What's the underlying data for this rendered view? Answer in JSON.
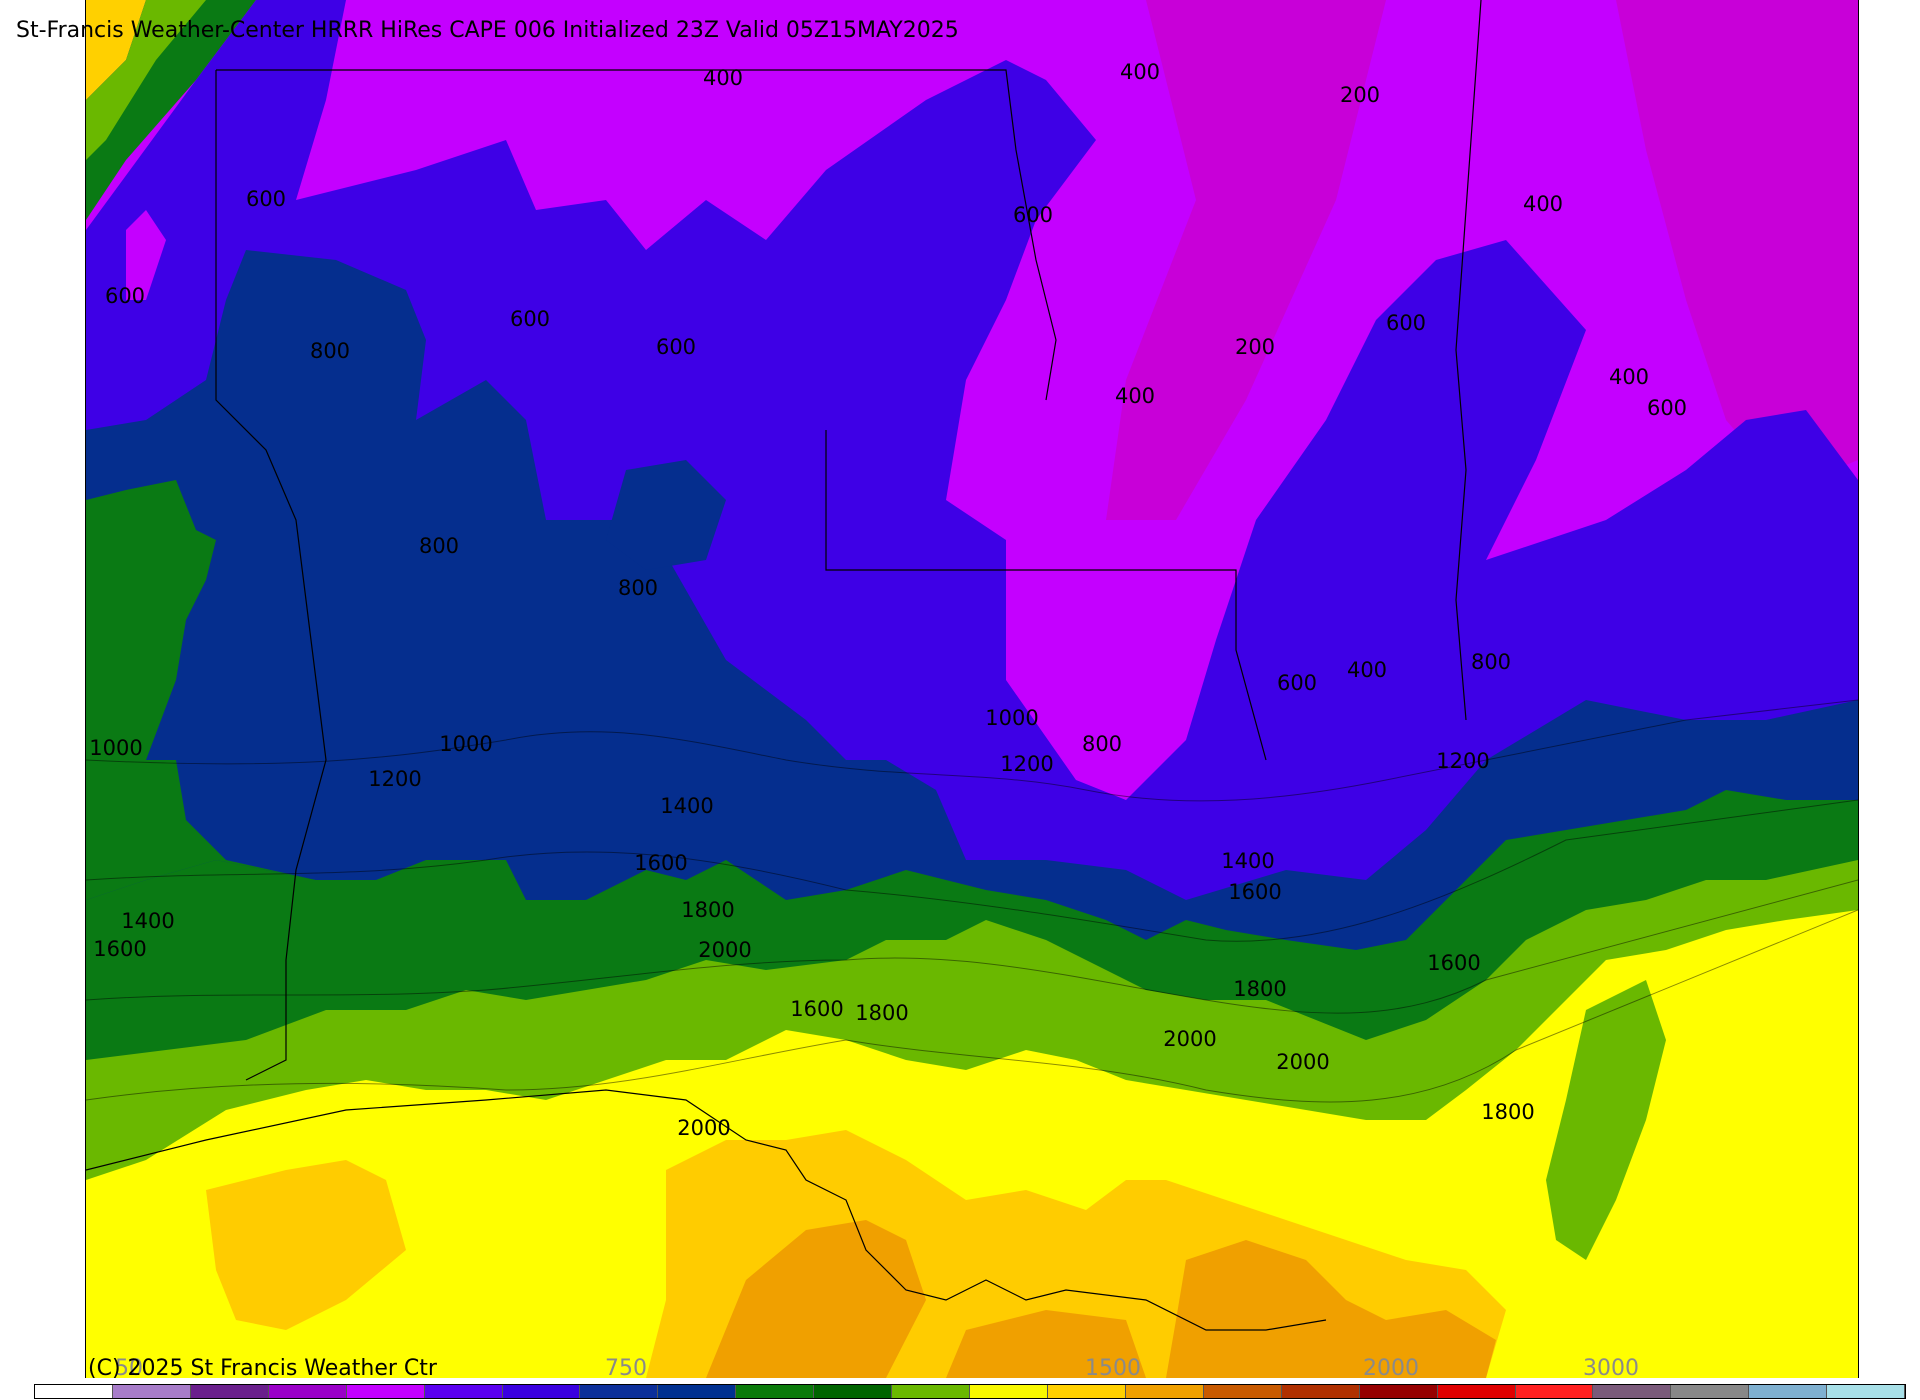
{
  "title": "St-Francis Weather-Center HRRR HiRes CAPE  006 Initialized  23Z Valid 05Z15MAY2025",
  "copyright": "(C) 2025 St Francis Weather Ctr",
  "contour_labels": [
    {
      "id": "l01",
      "text": "400"
    },
    {
      "id": "l02",
      "text": "400"
    },
    {
      "id": "l03",
      "text": "200"
    },
    {
      "id": "l04",
      "text": "600"
    },
    {
      "id": "l05",
      "text": "600"
    },
    {
      "id": "l06",
      "text": "400"
    },
    {
      "id": "l07",
      "text": "600"
    },
    {
      "id": "l08",
      "text": "600"
    },
    {
      "id": "l09",
      "text": "600"
    },
    {
      "id": "l10",
      "text": "800"
    },
    {
      "id": "l11",
      "text": "600"
    },
    {
      "id": "l12",
      "text": "200"
    },
    {
      "id": "l13",
      "text": "400"
    },
    {
      "id": "l14",
      "text": "400"
    },
    {
      "id": "l15",
      "text": "600"
    },
    {
      "id": "l16",
      "text": "800"
    },
    {
      "id": "l17",
      "text": "800"
    },
    {
      "id": "l18",
      "text": "600"
    },
    {
      "id": "l19",
      "text": "400"
    },
    {
      "id": "l20",
      "text": "800"
    },
    {
      "id": "l21",
      "text": "1000"
    },
    {
      "id": "l22",
      "text": "1000"
    },
    {
      "id": "l23",
      "text": "1000"
    },
    {
      "id": "l24",
      "text": "800"
    },
    {
      "id": "l25",
      "text": "1200"
    },
    {
      "id": "l26",
      "text": "1200"
    },
    {
      "id": "l27",
      "text": "1200"
    },
    {
      "id": "l28",
      "text": "1400"
    },
    {
      "id": "l29",
      "text": "1400"
    },
    {
      "id": "l30",
      "text": "1600"
    },
    {
      "id": "l31",
      "text": "1600"
    },
    {
      "id": "l32",
      "text": "1800"
    },
    {
      "id": "l33",
      "text": "2000"
    },
    {
      "id": "l34",
      "text": "1400"
    },
    {
      "id": "l35",
      "text": "1600"
    },
    {
      "id": "l36",
      "text": "1600"
    },
    {
      "id": "l37",
      "text": "1800"
    },
    {
      "id": "l38",
      "text": "1600"
    },
    {
      "id": "l39",
      "text": "1800"
    },
    {
      "id": "l40",
      "text": "2000"
    },
    {
      "id": "l41",
      "text": "2000"
    },
    {
      "id": "l42",
      "text": "2000"
    },
    {
      "id": "l43",
      "text": "1800"
    }
  ],
  "colorbar": {
    "tick_labels": [
      "50",
      "750",
      "1500",
      "2000",
      "3000"
    ],
    "colors": [
      "#ffffff",
      "#a77cc9",
      "#6a1f8c",
      "#9a00c8",
      "#c300ff",
      "#5a00f0",
      "#3a00e0",
      "#0c2f9a",
      "#003090",
      "#0a7a0a",
      "#006400",
      "#6ab800",
      "#f8f800",
      "#ffd000",
      "#f0a000",
      "#c85a00",
      "#b03000",
      "#960000",
      "#e00000",
      "#ff2020",
      "#7a5a7a",
      "#888888",
      "#7fb0d0",
      "#a8e0e8"
    ]
  },
  "map_colors": {
    "cape_0_200": "#c800d8",
    "cape_200_400": "#c400ff",
    "cape_400_600": "#3e00e6",
    "cape_600_800": "#052e8e",
    "cape_800_1000": "#0a7a14",
    "cape_1000_1200": "#0a7a14",
    "cape_1200_1400": "#6ab800",
    "cape_1400_1600": "#ffff00",
    "cape_1600_1800": "#ffcc00",
    "cape_1800_2000": "#f0a000",
    "cape_2000_plus": "#e89000"
  }
}
